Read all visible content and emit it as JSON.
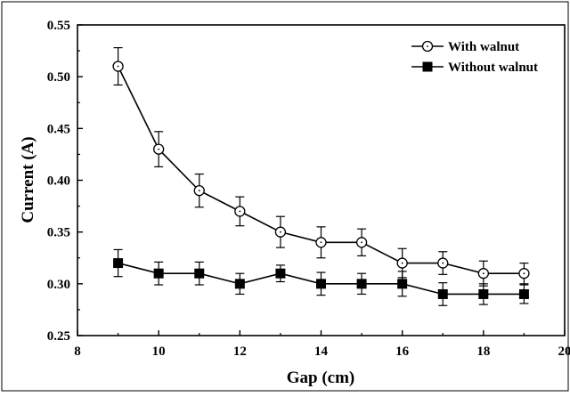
{
  "chart_data": {
    "type": "line",
    "title": "",
    "xlabel": "Gap (cm)",
    "ylabel": "Current (A)",
    "xlim": [
      8,
      20
    ],
    "ylim": [
      0.25,
      0.55
    ],
    "x_ticks": [
      8,
      10,
      12,
      14,
      16,
      18,
      20
    ],
    "x_tick_labels": [
      "8",
      "10",
      "12",
      "14",
      "16",
      "18",
      "20"
    ],
    "y_ticks": [
      0.25,
      0.3,
      0.35,
      0.4,
      0.45,
      0.5,
      0.55
    ],
    "y_tick_labels": [
      "0.25",
      "0.30",
      "0.35",
      "0.40",
      "0.45",
      "0.50",
      "0.55"
    ],
    "grid": false,
    "legend_position": "top-right",
    "series": [
      {
        "name": "With walnut",
        "marker": "open-circle",
        "x": [
          9,
          10,
          11,
          12,
          13,
          14,
          15,
          16,
          17,
          18,
          19
        ],
        "y": [
          0.51,
          0.43,
          0.39,
          0.37,
          0.35,
          0.34,
          0.34,
          0.32,
          0.32,
          0.31,
          0.31
        ],
        "error": [
          0.018,
          0.017,
          0.016,
          0.014,
          0.015,
          0.015,
          0.013,
          0.014,
          0.011,
          0.012,
          0.01
        ]
      },
      {
        "name": "Without walnut",
        "marker": "filled-square",
        "x": [
          9,
          10,
          11,
          12,
          13,
          14,
          15,
          16,
          17,
          18,
          19
        ],
        "y": [
          0.32,
          0.31,
          0.31,
          0.3,
          0.31,
          0.3,
          0.3,
          0.3,
          0.29,
          0.29,
          0.29
        ],
        "error": [
          0.013,
          0.011,
          0.011,
          0.01,
          0.008,
          0.011,
          0.01,
          0.012,
          0.011,
          0.01,
          0.009
        ]
      }
    ],
    "colors": {
      "line": "#000000",
      "marker_fill_open": "#ffffff",
      "marker_fill_filled": "#000000"
    }
  }
}
